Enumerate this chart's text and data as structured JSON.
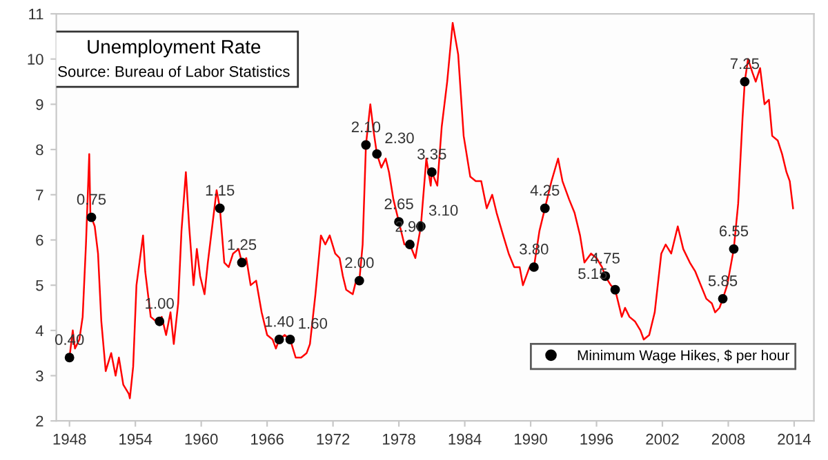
{
  "chart_data": {
    "type": "line",
    "title": "Unemployment Rate",
    "subtitle": "Source: Bureau of Labor Statistics",
    "xlim": [
      1946.8,
      2015.8
    ],
    "xticks": [
      1948,
      1954,
      1960,
      1966,
      1972,
      1978,
      1984,
      1990,
      1996,
      2002,
      2008,
      2014
    ],
    "ylim": [
      2,
      11
    ],
    "yticks": [
      2,
      3,
      4,
      5,
      6,
      7,
      8,
      9,
      10,
      11
    ],
    "grid": false,
    "legend": "bottom right",
    "series": [
      {
        "color": "#ff0000",
        "x": [
          1948.0,
          1948.3,
          1948.5,
          1948.9,
          1949.2,
          1949.5,
          1949.8,
          1949.9,
          1950.0,
          1950.3,
          1950.6,
          1950.9,
          1951.3,
          1951.8,
          1952.2,
          1952.5,
          1952.9,
          1953.4,
          1953.5,
          1953.8,
          1954.1,
          1954.7,
          1954.9,
          1955.4,
          1955.9,
          1956.2,
          1956.4,
          1956.8,
          1957.2,
          1957.5,
          1957.9,
          1958.2,
          1958.6,
          1958.9,
          1959.3,
          1959.6,
          1959.9,
          1960.3,
          1960.6,
          1960.9,
          1961.4,
          1961.7,
          1962.1,
          1962.5,
          1962.9,
          1963.4,
          1963.7,
          1964.1,
          1964.5,
          1965.0,
          1965.5,
          1966.0,
          1966.5,
          1966.8,
          1967.1,
          1967.6,
          1968.1,
          1968.6,
          1969.1,
          1969.6,
          1969.9,
          1970.4,
          1970.9,
          1971.3,
          1971.7,
          1972.2,
          1972.6,
          1972.9,
          1973.2,
          1973.8,
          1974.1,
          1974.4,
          1974.7,
          1975.0,
          1975.4,
          1975.7,
          1976.0,
          1976.4,
          1976.8,
          1977.1,
          1977.5,
          1978.0,
          1978.5,
          1979.0,
          1979.5,
          1980.0,
          1980.5,
          1980.9,
          1981.0,
          1981.5,
          1981.9,
          1982.4,
          1982.9,
          1983.4,
          1983.9,
          1984.5,
          1985.0,
          1985.5,
          1986.0,
          1986.5,
          1986.9,
          1987.5,
          1988.0,
          1988.5,
          1989.0,
          1989.3,
          1989.9,
          1990.3,
          1990.8,
          1991.3,
          1991.9,
          1992.5,
          1992.9,
          1993.5,
          1994.0,
          1994.5,
          1994.9,
          1995.5,
          1996.0,
          1996.5,
          1996.8,
          1997.3,
          1997.7,
          1998.3,
          1998.6,
          1999.0,
          1999.5,
          2000.0,
          2000.3,
          2000.8,
          2001.3,
          2001.9,
          2002.3,
          2002.8,
          2003.4,
          2003.9,
          2004.5,
          2005.0,
          2005.5,
          2006.0,
          2006.5,
          2006.8,
          2007.2,
          2007.5,
          2007.9,
          2008.5,
          2008.9,
          2009.3,
          2009.5,
          2009.8,
          2010.2,
          2010.5,
          2010.9,
          2011.3,
          2011.7,
          2012.0,
          2012.5,
          2012.9,
          2013.3,
          2013.6,
          2013.9
        ],
        "values": [
          3.4,
          4.0,
          3.6,
          3.8,
          4.3,
          5.9,
          7.9,
          6.6,
          6.5,
          6.3,
          5.7,
          4.2,
          3.1,
          3.5,
          3.0,
          3.4,
          2.8,
          2.6,
          2.5,
          3.2,
          5.0,
          6.1,
          5.3,
          4.3,
          4.2,
          4.2,
          4.3,
          3.9,
          4.4,
          3.7,
          4.6,
          6.2,
          7.5,
          6.3,
          5.0,
          5.8,
          5.2,
          4.8,
          5.5,
          6.1,
          7.1,
          6.7,
          5.5,
          5.4,
          5.7,
          5.8,
          5.5,
          5.6,
          5.0,
          5.1,
          4.4,
          3.9,
          3.8,
          3.6,
          3.8,
          3.9,
          3.8,
          3.4,
          3.4,
          3.5,
          3.7,
          4.8,
          6.1,
          5.9,
          6.1,
          5.7,
          5.6,
          5.2,
          4.9,
          4.8,
          5.1,
          5.1,
          5.9,
          8.1,
          9.0,
          8.4,
          7.9,
          7.6,
          7.8,
          7.5,
          6.9,
          6.4,
          5.9,
          5.9,
          5.6,
          6.3,
          7.8,
          7.2,
          7.5,
          7.2,
          8.5,
          9.5,
          10.8,
          10.1,
          8.3,
          7.4,
          7.3,
          7.3,
          6.7,
          7.0,
          6.6,
          6.1,
          5.7,
          5.4,
          5.4,
          5.0,
          5.4,
          5.4,
          6.2,
          6.7,
          7.3,
          7.8,
          7.3,
          6.9,
          6.6,
          6.1,
          5.5,
          5.7,
          5.6,
          5.4,
          5.2,
          5.0,
          4.9,
          4.3,
          4.5,
          4.3,
          4.2,
          4.0,
          3.8,
          3.9,
          4.4,
          5.7,
          5.9,
          5.7,
          6.3,
          5.8,
          5.5,
          5.3,
          5.0,
          4.7,
          4.6,
          4.4,
          4.5,
          4.7,
          5.0,
          5.8,
          6.8,
          8.7,
          9.5,
          10.0,
          9.7,
          9.5,
          9.8,
          9.0,
          9.1,
          8.3,
          8.2,
          7.9,
          7.5,
          7.3,
          6.7
        ]
      },
      {
        "type": "scatter",
        "name": "Minimum Wage Hikes, $ per hour",
        "color": "#000000",
        "marker": "circle",
        "x": [
          1948.0,
          1950.0,
          1956.2,
          1961.7,
          1963.7,
          1967.1,
          1968.1,
          1974.4,
          1975.0,
          1976.0,
          1978.0,
          1979.0,
          1980.0,
          1981.0,
          1990.3,
          1991.3,
          1996.8,
          1997.7,
          2007.5,
          2008.5,
          2009.5
        ],
        "values": [
          3.4,
          6.5,
          4.2,
          6.7,
          5.5,
          3.8,
          3.8,
          5.1,
          8.1,
          7.9,
          6.4,
          5.9,
          6.3,
          7.5,
          5.4,
          6.7,
          5.2,
          4.9,
          4.7,
          5.8,
          9.5
        ]
      }
    ],
    "annotations": [
      {
        "text": "0.40",
        "x": 1948.0,
        "y": 3.4
      },
      {
        "text": "0.75",
        "x": 1950.0,
        "y": 6.5
      },
      {
        "text": "1.00",
        "x": 1956.2,
        "y": 4.2
      },
      {
        "text": "1.15",
        "x": 1961.7,
        "y": 6.7
      },
      {
        "text": "1.25",
        "x": 1963.7,
        "y": 5.5
      },
      {
        "text": "1.40",
        "x": 1967.1,
        "y": 3.8
      },
      {
        "text": "1.60",
        "x": 1968.1,
        "y": 3.8
      },
      {
        "text": "2.00",
        "x": 1974.4,
        "y": 5.1
      },
      {
        "text": "2.10",
        "x": 1975.0,
        "y": 8.1
      },
      {
        "text": "2.30",
        "x": 1976.0,
        "y": 7.9
      },
      {
        "text": "2.65",
        "x": 1978.0,
        "y": 6.4
      },
      {
        "text": "2.90",
        "x": 1979.0,
        "y": 5.9
      },
      {
        "text": "3.10",
        "x": 1980.0,
        "y": 6.3
      },
      {
        "text": "3.35",
        "x": 1981.0,
        "y": 7.5
      },
      {
        "text": "3.80",
        "x": 1990.3,
        "y": 5.4
      },
      {
        "text": "4.25",
        "x": 1991.3,
        "y": 6.7
      },
      {
        "text": "4.75",
        "x": 1996.8,
        "y": 5.2
      },
      {
        "text": "5.15",
        "x": 1997.7,
        "y": 4.9
      },
      {
        "text": "5.85",
        "x": 2007.5,
        "y": 4.7
      },
      {
        "text": "6.55",
        "x": 2008.5,
        "y": 5.8
      },
      {
        "text": "7.25",
        "x": 2009.5,
        "y": 9.5
      }
    ]
  }
}
